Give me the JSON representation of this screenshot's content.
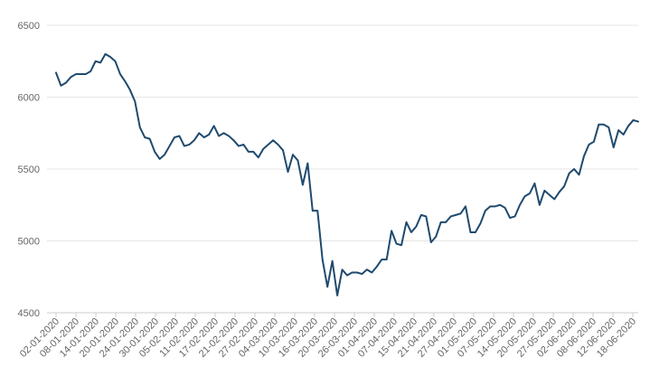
{
  "chart_data": {
    "type": "line",
    "title": "",
    "xlabel": "",
    "ylabel": "",
    "ylim": [
      4500,
      6500
    ],
    "yticks": [
      4500,
      5000,
      5500,
      6000,
      6500
    ],
    "grid": true,
    "legend": "none",
    "colors": {
      "line": "#1f4a6e",
      "grid": "#e6e6e6",
      "tick_text": "#666666"
    },
    "x_tick_labels": [
      "02-01-2020",
      "08-01-2020",
      "14-01-2020",
      "20-01-2020",
      "24-01-2020",
      "30-01-2020",
      "05-02-2020",
      "11-02-2020",
      "17-02-2020",
      "21-02-2020",
      "27-02-2020",
      "04-03-2020",
      "10-03-2020",
      "16-03-2020",
      "20-03-2020",
      "26-03-2020",
      "01-04-2020",
      "07-04-2020",
      "15-04-2020",
      "21-04-2020",
      "27-04-2020",
      "01-05-2020",
      "07-05-2020",
      "14-05-2020",
      "20-05-2020",
      "27-05-2020",
      "02-06-2020",
      "08-06-2020",
      "12-06-2020",
      "18-06-2020"
    ],
    "series": [
      {
        "values": [
          6170,
          6080,
          6100,
          6140,
          6160,
          6160,
          6160,
          6180,
          6250,
          6240,
          6300,
          6280,
          6250,
          6160,
          6110,
          6050,
          5970,
          5790,
          5720,
          5710,
          5620,
          5570,
          5600,
          5660,
          5720,
          5730,
          5660,
          5670,
          5700,
          5750,
          5720,
          5740,
          5800,
          5730,
          5750,
          5730,
          5700,
          5660,
          5670,
          5620,
          5620,
          5580,
          5640,
          5670,
          5700,
          5670,
          5630,
          5480,
          5600,
          5560,
          5390,
          5540,
          5210,
          5210,
          4870,
          4680,
          4860,
          4620,
          4800,
          4760,
          4780,
          4780,
          4770,
          4800,
          4780,
          4820,
          4870,
          4870,
          5070,
          4980,
          4970,
          5130,
          5060,
          5100,
          5180,
          5170,
          4990,
          5030,
          5130,
          5130,
          5170,
          5180,
          5190,
          5240,
          5060,
          5060,
          5120,
          5210,
          5240,
          5240,
          5250,
          5230,
          5160,
          5170,
          5250,
          5310,
          5330,
          5400,
          5250,
          5350,
          5320,
          5290,
          5340,
          5380,
          5470,
          5500,
          5460,
          5590,
          5670,
          5690,
          5810,
          5810,
          5790,
          5650,
          5770,
          5740,
          5800,
          5840,
          5830
        ]
      }
    ]
  }
}
